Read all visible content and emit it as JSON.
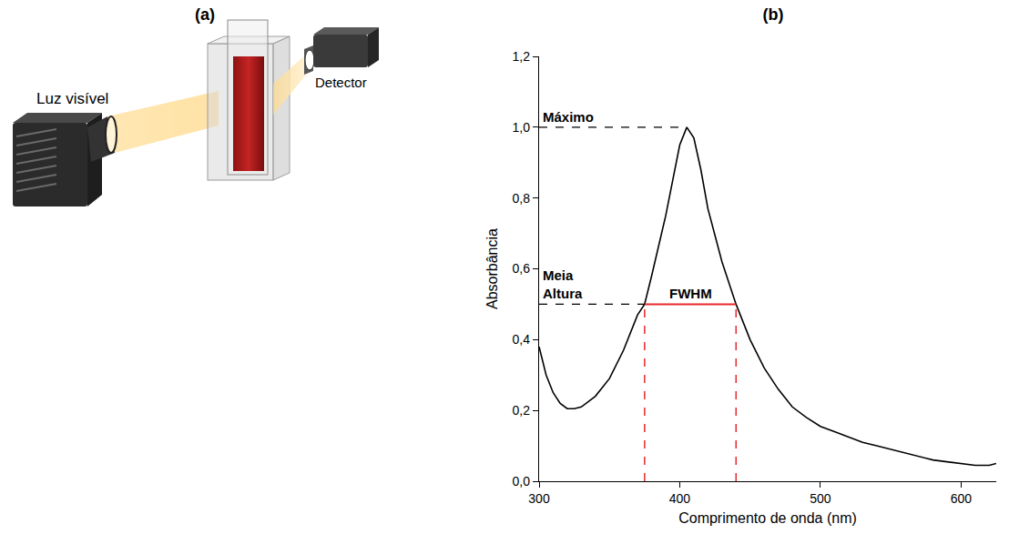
{
  "diagram": {
    "label": "(a)",
    "source_label": "Luz visível",
    "detector_label": "Detector"
  },
  "chart_data": {
    "label": "(b)",
    "type": "line",
    "x_label": "Comprimento de onda (nm)",
    "y_label": "Absorbância",
    "x": [
      300,
      305,
      310,
      315,
      320,
      325,
      330,
      340,
      350,
      360,
      370,
      375,
      380,
      390,
      395,
      400,
      405,
      410,
      415,
      420,
      430,
      440,
      450,
      460,
      470,
      480,
      490,
      500,
      510,
      520,
      530,
      540,
      550,
      560,
      570,
      580,
      590,
      600,
      610,
      620,
      625
    ],
    "values": [
      0.38,
      0.3,
      0.25,
      0.22,
      0.205,
      0.205,
      0.21,
      0.24,
      0.29,
      0.37,
      0.47,
      0.5,
      0.58,
      0.75,
      0.85,
      0.95,
      1.0,
      0.97,
      0.88,
      0.77,
      0.62,
      0.5,
      0.4,
      0.32,
      0.26,
      0.21,
      0.18,
      0.155,
      0.14,
      0.125,
      0.11,
      0.1,
      0.09,
      0.08,
      0.07,
      0.06,
      0.055,
      0.05,
      0.045,
      0.045,
      0.05
    ],
    "color": "#000000",
    "xlim": [
      300,
      625
    ],
    "xticks": [
      300,
      400,
      500,
      600
    ],
    "ylim": [
      0,
      1.2
    ],
    "yticks": [
      {
        "value": 0,
        "label": "0,0"
      },
      {
        "value": 0.2,
        "label": "0,2"
      },
      {
        "value": 0.4,
        "label": "0,4"
      },
      {
        "value": 0.6,
        "label": "0,6"
      },
      {
        "value": 0.8,
        "label": "0,8"
      },
      {
        "value": 1.0,
        "label": "1,0"
      },
      {
        "value": 1.2,
        "label": "1,2"
      }
    ],
    "grid": false,
    "annotations": [
      {
        "text": "Máximo",
        "x": 405,
        "y": 1.0
      },
      {
        "text": "Meia Altura",
        "x": 375,
        "y": 0.5
      },
      {
        "text": "FWHM",
        "x": [
          375,
          440
        ],
        "y": 0.5,
        "color": "#e8282b"
      }
    ]
  }
}
